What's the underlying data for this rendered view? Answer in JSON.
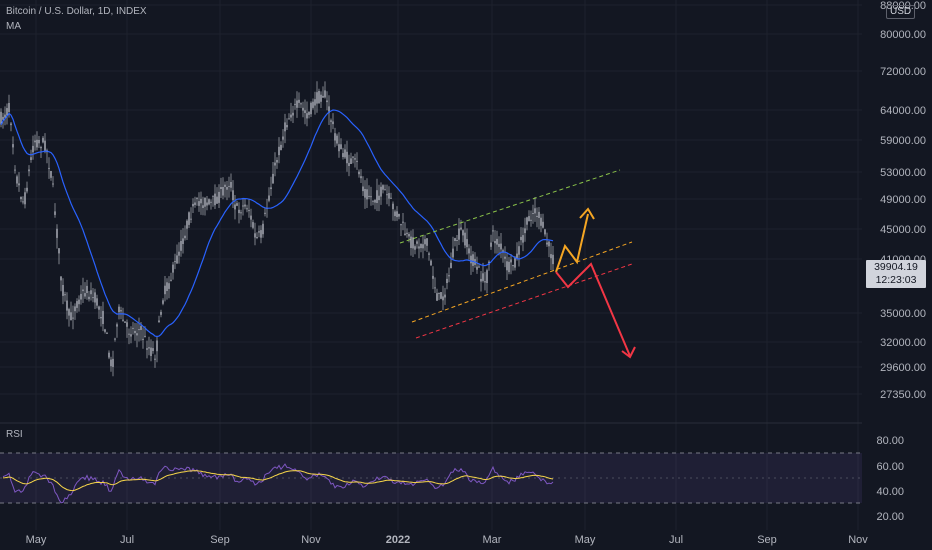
{
  "header": {
    "symbol_line": "Bitcoin / U.S. Dollar, 1D, INDEX",
    "ma_label": "MA",
    "rsi_label": "RSI",
    "currency": "USD"
  },
  "last_price": {
    "value": "39904.19",
    "countdown": "12:23:03"
  },
  "chart_data": {
    "type": "line",
    "main_price_axis": {
      "ticks": [
        "88000.00",
        "80000.00",
        "72000.00",
        "64000.00",
        "59000.00",
        "53000.00",
        "49000.00",
        "45000.00",
        "41000.00",
        "35000.00",
        "32000.00",
        "29600.00",
        "27350.00"
      ]
    },
    "rsi_axis": {
      "ticks": [
        "80.00",
        "60.00",
        "40.00",
        "20.00"
      ]
    },
    "time_axis": {
      "ticks": [
        "May",
        "Jul",
        "Sep",
        "Nov",
        "2022",
        "Mar",
        "May",
        "Jul",
        "Sep",
        "Nov"
      ]
    },
    "series": [
      {
        "name": "Bitcoin / U.S. Dollar",
        "color": "#d1d4dc"
      },
      {
        "name": "MA",
        "color": "#2962ff"
      },
      {
        "name": "RSI",
        "color": "#7e57c2"
      }
    ],
    "colors": {
      "background": "#131722",
      "ma": "#2962ff",
      "rsi": "#7e57c2",
      "rsi_signal": "#f7d64a",
      "bull_arrow": "#f5a623",
      "bear_arrow": "#f23645",
      "channel_upper": "#8bc34a",
      "channel_mid": "#f5a623",
      "channel_lower": "#f23645"
    }
  }
}
